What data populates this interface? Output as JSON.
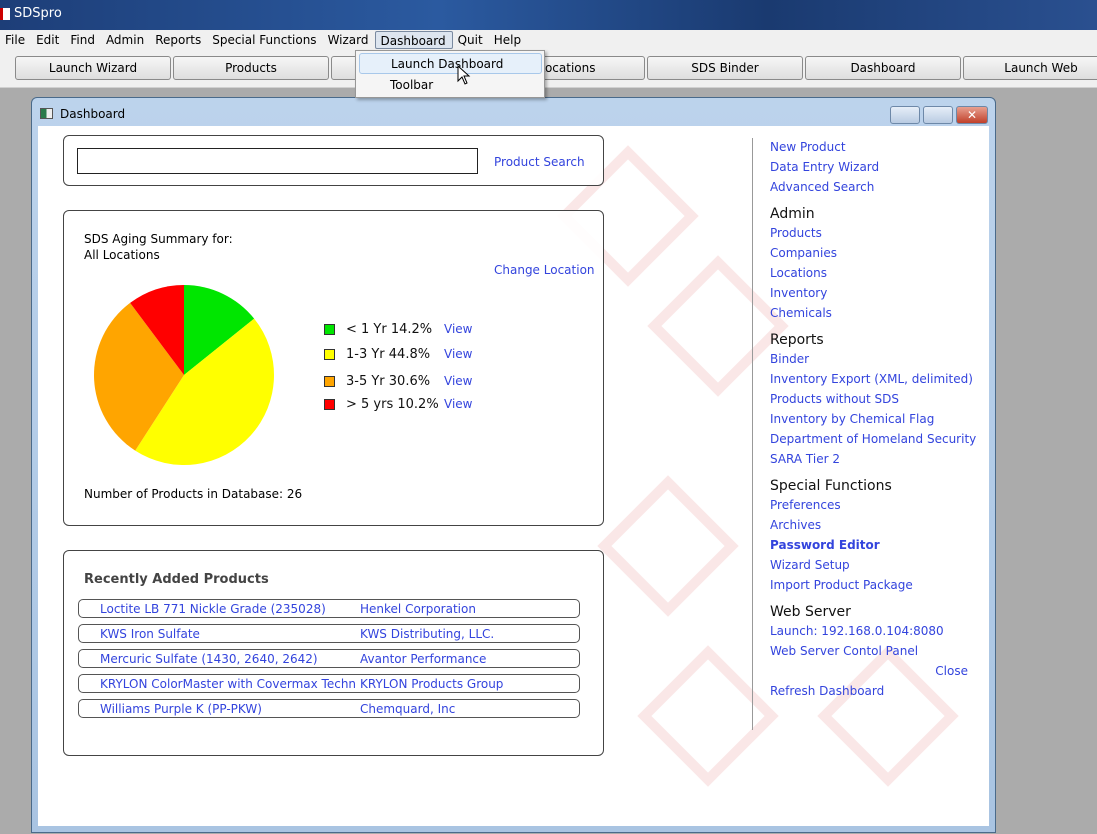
{
  "app": {
    "title": "SDSpro"
  },
  "menu": [
    "File",
    "Edit",
    "Find",
    "Admin",
    "Reports",
    "Special Functions",
    "Wizard",
    "Dashboard",
    "Quit",
    "Help"
  ],
  "dropdown": [
    "Launch Dashboard",
    "Toolbar"
  ],
  "toolbar": [
    "Launch Wizard",
    "Products",
    "",
    "Locations",
    "SDS Binder",
    "Dashboard",
    "Launch Web"
  ],
  "window": {
    "title": "Dashboard"
  },
  "search": {
    "value": "",
    "link": "Product Search"
  },
  "aging": {
    "title": "SDS Aging Summary for:",
    "location": "All Locations",
    "change": "Change Location",
    "count_text": "Number of Products in Database: 26",
    "view": "View"
  },
  "chart_data": {
    "type": "pie",
    "slices": [
      {
        "label": "< 1 Yr 14.2%",
        "value": 14.2,
        "color": "#00e600"
      },
      {
        "label": "1-3 Yr 44.8%",
        "value": 44.8,
        "color": "#ffff00"
      },
      {
        "label": "3-5 Yr 30.6%",
        "value": 30.6,
        "color": "#ffa500"
      },
      {
        "label": "> 5 yrs 10.2%",
        "value": 10.2,
        "color": "#ff0000"
      }
    ]
  },
  "recent": {
    "title": "Recently Added Products",
    "rows": [
      {
        "product": "Loctite LB 771 Nickle Grade (235028)",
        "company": "Henkel Corporation"
      },
      {
        "product": "KWS Iron Sulfate",
        "company": "KWS Distributing, LLC."
      },
      {
        "product": "Mercuric Sulfate (1430, 2640, 2642)",
        "company": "Avantor Performance"
      },
      {
        "product": "KRYLON ColorMaster with Covermax Technol...",
        "company": "KRYLON Products Group"
      },
      {
        "product": "Williams Purple K (PP-PKW)",
        "company": "Chemquard, Inc"
      }
    ]
  },
  "side": {
    "top": [
      "New Product",
      "Data Entry Wizard",
      "Advanced Search"
    ],
    "admin": {
      "title": "Admin",
      "items": [
        "Products",
        "Companies",
        "Locations",
        "Inventory",
        "Chemicals"
      ]
    },
    "reports": {
      "title": "Reports",
      "items": [
        "Binder",
        "Inventory Export (XML, delimited)",
        "Products without SDS",
        "Inventory by Chemical Flag",
        "Department of Homeland Security",
        "SARA Tier 2"
      ]
    },
    "special": {
      "title": "Special Functions",
      "items": [
        "Preferences",
        "Archives",
        "Password Editor",
        "Wizard Setup",
        "Import Product Package"
      ]
    },
    "web": {
      "title": "Web Server",
      "items": [
        "Launch: 192.168.0.104:8080",
        "Web Server Contol Panel"
      ]
    },
    "close": "Close",
    "refresh": "Refresh Dashboard"
  }
}
